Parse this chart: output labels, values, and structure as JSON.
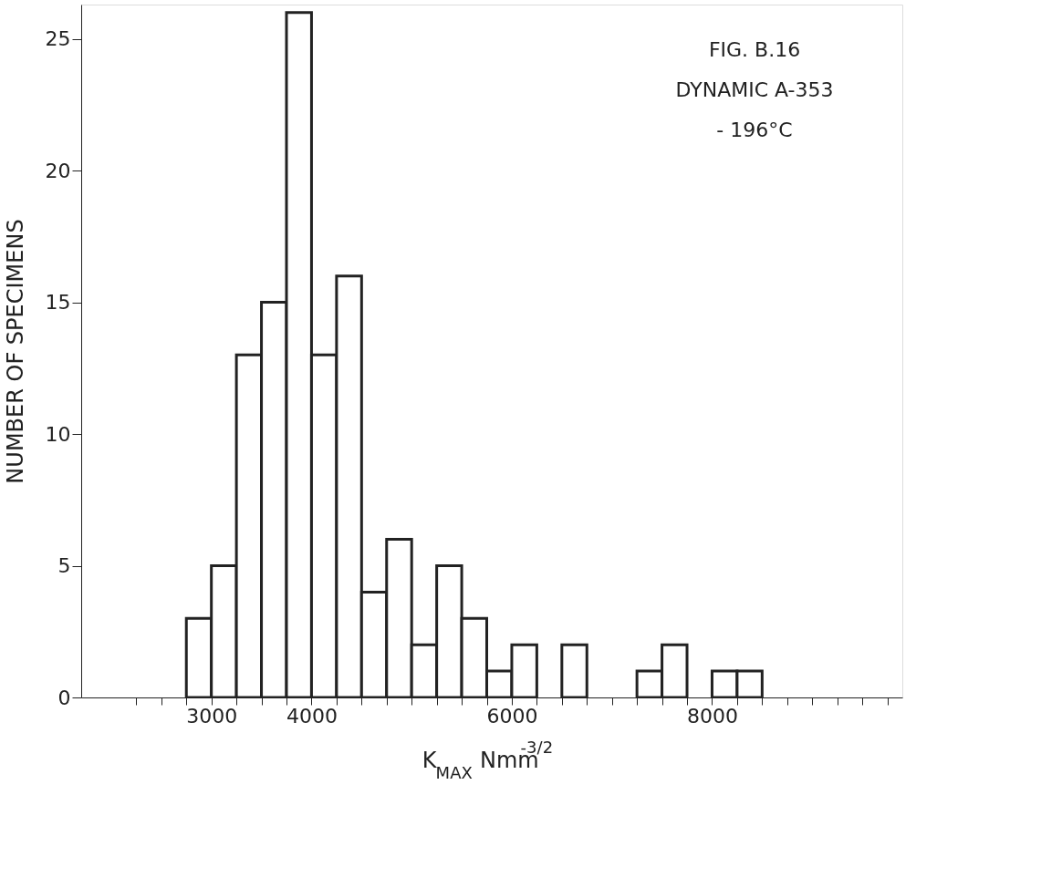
{
  "chart_data": {
    "type": "histogram",
    "xlabel": "K$_{MAX}$ Nmm$^{-3/2}$",
    "ylabel": "NUMBER OF SPECIMENS",
    "annotations": [
      "FIG. B.16",
      "DYNAMIC A-353",
      "- 196°C"
    ],
    "bins": [
      2750,
      3000,
      3250,
      3500,
      3750,
      4000,
      4250,
      4500,
      4750,
      5000,
      5250,
      5500,
      5750,
      6000,
      6250,
      6500,
      6750,
      7000,
      7250,
      7500,
      7750,
      8000,
      8250,
      8500
    ],
    "values": [
      3,
      5,
      13,
      15,
      26,
      13,
      16,
      4,
      6,
      2,
      5,
      3,
      1,
      2,
      0,
      2,
      0,
      0,
      1,
      2,
      0,
      1,
      1
    ],
    "color": "#ffffff",
    "xlim": [
      1700,
      9900
    ],
    "xticks": [
      3000,
      4000,
      6000,
      8000,
      {
        "value": 2250,
        "label": null
      },
      {
        "value": 2500,
        "label": null
      },
      {
        "value": 2750,
        "label": null
      },
      {
        "value": 3250,
        "label": null
      },
      {
        "value": 3500,
        "label": null
      },
      {
        "value": 3750,
        "label": null
      },
      {
        "value": 4250,
        "label": null
      },
      {
        "value": 4500,
        "label": null
      },
      {
        "value": 4750,
        "label": null
      },
      {
        "value": 5000,
        "label": null
      },
      {
        "value": 5250,
        "label": null
      },
      {
        "value": 5500,
        "label": null
      },
      {
        "value": 5750,
        "label": null
      },
      {
        "value": 6250,
        "label": null
      },
      {
        "value": 6500,
        "label": null
      },
      {
        "value": 6750,
        "label": null
      },
      {
        "value": 7000,
        "label": null
      },
      {
        "value": 7250,
        "label": null
      },
      {
        "value": 7500,
        "label": null
      },
      {
        "value": 7750,
        "label": null
      },
      {
        "value": 8250,
        "label": null
      },
      {
        "value": 8500,
        "label": null
      },
      {
        "value": 8750,
        "label": null
      },
      {
        "value": 9000,
        "label": null
      },
      {
        "value": 9250,
        "label": null
      },
      {
        "value": 9500,
        "label": null
      },
      {
        "value": 9750,
        "label": null
      }
    ],
    "ylim": [
      0,
      26.3
    ],
    "yticks": [
      0,
      5,
      10,
      15,
      20,
      25
    ],
    "grid": false
  }
}
